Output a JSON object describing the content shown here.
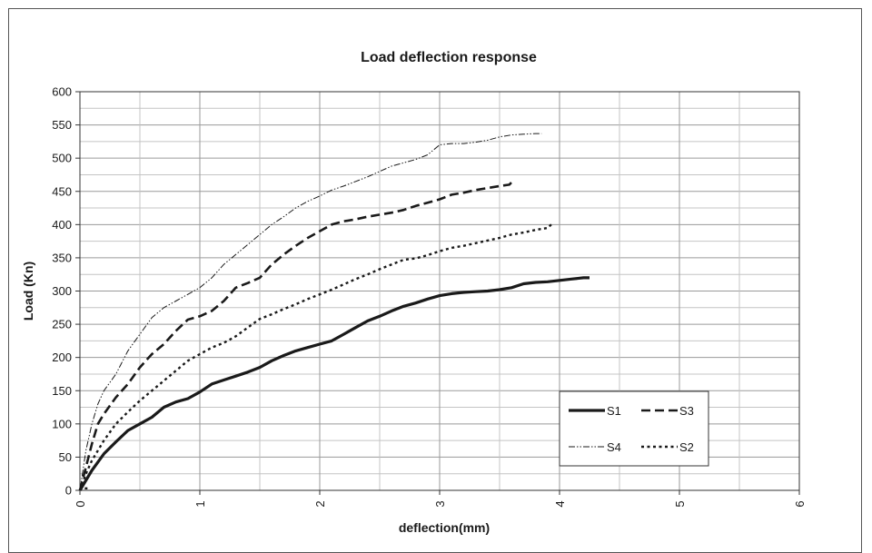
{
  "chart_data": {
    "type": "line",
    "title": "Load deflection response",
    "xlabel": "deflection(mm)",
    "ylabel": "Load (Kn)",
    "xlim": [
      0,
      6
    ],
    "ylim": [
      0,
      600
    ],
    "x_ticks": [
      "0",
      "1",
      "2",
      "3",
      "4",
      "5",
      "6"
    ],
    "y_ticks": [
      "0",
      "50",
      "100",
      "150",
      "200",
      "250",
      "300",
      "350",
      "400",
      "450",
      "500",
      "550",
      "600"
    ],
    "grid": true,
    "legend_position": "bottom-right",
    "series": [
      {
        "name": "S1",
        "style": "solid",
        "x": [
          0,
          0.05,
          0.1,
          0.2,
          0.3,
          0.4,
          0.5,
          0.6,
          0.7,
          0.8,
          0.9,
          1.0,
          1.1,
          1.2,
          1.3,
          1.4,
          1.5,
          1.6,
          1.7,
          1.8,
          1.9,
          2.0,
          2.1,
          2.2,
          2.3,
          2.4,
          2.5,
          2.6,
          2.7,
          2.8,
          2.9,
          3.0,
          3.1,
          3.2,
          3.3,
          3.4,
          3.5,
          3.6,
          3.7,
          3.8,
          3.9,
          4.0,
          4.1,
          4.2,
          4.25
        ],
        "y": [
          0,
          15,
          30,
          55,
          73,
          90,
          100,
          110,
          125,
          133,
          138,
          148,
          160,
          166,
          172,
          178,
          185,
          195,
          203,
          210,
          215,
          220,
          225,
          235,
          245,
          255,
          262,
          270,
          277,
          282,
          288,
          293,
          296,
          298,
          299,
          300,
          302,
          305,
          311,
          313,
          314,
          316,
          318,
          320,
          320
        ]
      },
      {
        "name": "S3",
        "style": "dashed",
        "x": [
          0,
          0.05,
          0.1,
          0.15,
          0.2,
          0.3,
          0.4,
          0.5,
          0.6,
          0.7,
          0.8,
          0.9,
          1.0,
          1.1,
          1.2,
          1.3,
          1.4,
          1.5,
          1.6,
          1.7,
          1.8,
          1.9,
          2.0,
          2.1,
          2.2,
          2.3,
          2.4,
          2.5,
          2.6,
          2.7,
          2.8,
          2.9,
          3.0,
          3.1,
          3.2,
          3.3,
          3.4,
          3.5,
          3.58,
          3.62
        ],
        "y": [
          0,
          35,
          70,
          100,
          115,
          140,
          160,
          185,
          205,
          220,
          240,
          257,
          262,
          270,
          285,
          305,
          312,
          320,
          340,
          355,
          368,
          380,
          390,
          400,
          405,
          408,
          412,
          415,
          418,
          422,
          428,
          433,
          438,
          445,
          448,
          452,
          455,
          458,
          460,
          467
        ]
      },
      {
        "name": "S4",
        "style": "dash-dot-dot",
        "x": [
          0,
          0.05,
          0.1,
          0.15,
          0.2,
          0.3,
          0.4,
          0.5,
          0.6,
          0.7,
          0.8,
          0.9,
          1.0,
          1.1,
          1.2,
          1.3,
          1.4,
          1.5,
          1.6,
          1.7,
          1.8,
          1.9,
          2.0,
          2.1,
          2.2,
          2.3,
          2.4,
          2.5,
          2.6,
          2.7,
          2.8,
          2.9,
          3.0,
          3.1,
          3.2,
          3.3,
          3.4,
          3.5,
          3.6,
          3.7,
          3.8,
          3.85
        ],
        "y": [
          0,
          60,
          100,
          130,
          150,
          175,
          210,
          235,
          260,
          275,
          285,
          295,
          305,
          320,
          340,
          355,
          370,
          385,
          400,
          412,
          425,
          435,
          443,
          452,
          458,
          465,
          472,
          480,
          488,
          493,
          498,
          505,
          520,
          522,
          522,
          524,
          527,
          532,
          535,
          536,
          537,
          537
        ]
      },
      {
        "name": "S2",
        "style": "dotted",
        "x": [
          0,
          0.05,
          0.1,
          0.2,
          0.3,
          0.4,
          0.5,
          0.6,
          0.7,
          0.8,
          0.9,
          1.0,
          1.1,
          1.2,
          1.3,
          1.4,
          1.5,
          1.6,
          1.7,
          1.8,
          1.9,
          2.0,
          2.1,
          2.2,
          2.3,
          2.4,
          2.5,
          2.6,
          2.7,
          2.8,
          2.9,
          3.0,
          3.1,
          3.2,
          3.3,
          3.4,
          3.5,
          3.6,
          3.7,
          3.8,
          3.9,
          3.95
        ],
        "y": [
          0,
          25,
          45,
          75,
          100,
          118,
          135,
          150,
          165,
          180,
          195,
          205,
          215,
          222,
          232,
          245,
          258,
          265,
          273,
          280,
          288,
          295,
          302,
          310,
          318,
          325,
          333,
          340,
          347,
          349,
          354,
          360,
          365,
          368,
          372,
          376,
          380,
          385,
          388,
          392,
          395,
          403
        ]
      },
      {
        "name": "",
        "style": "dotted",
        "x": [
          0.04,
          0.08
        ],
        "y": [
          3,
          3
        ]
      }
    ]
  }
}
